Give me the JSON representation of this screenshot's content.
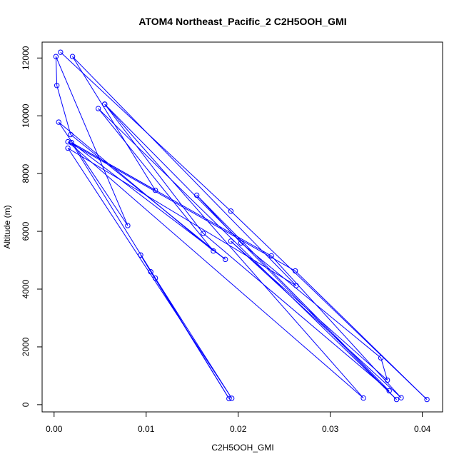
{
  "chart_data": {
    "type": "line",
    "title": "ATOM4 Northeast_Pacific_2 C2H5OOH_GMI",
    "xlabel": "C2H5OOH_GMI",
    "ylabel": "Altitude (m)",
    "xlim": [
      -0.0013,
      0.0422
    ],
    "ylim": [
      -250,
      12550
    ],
    "xticks": [
      0.0,
      0.01,
      0.02,
      0.03,
      0.04
    ],
    "xtick_labels": [
      "0.00",
      "0.01",
      "0.02",
      "0.03",
      "0.04"
    ],
    "yticks": [
      0,
      2000,
      4000,
      6000,
      8000,
      10000,
      12000
    ],
    "ytick_labels": [
      "0",
      "2000",
      "4000",
      "6000",
      "8000",
      "10000",
      "12000"
    ],
    "grid": false,
    "markers": "open-circle",
    "color": "#0000ff",
    "series": [
      {
        "points": [
          {
            "x": 0.0007,
            "y": 12200
          },
          {
            "x": 0.0192,
            "y": 6700
          },
          {
            "x": 0.0405,
            "y": 180
          },
          {
            "x": 0.0262,
            "y": 4630
          },
          {
            "x": 0.0015,
            "y": 9100
          },
          {
            "x": 0.0336,
            "y": 230
          },
          {
            "x": 0.0055,
            "y": 10400
          },
          {
            "x": 0.0372,
            "y": 180
          },
          {
            "x": 0.0048,
            "y": 10250
          },
          {
            "x": 0.0173,
            "y": 5320
          },
          {
            "x": 0.0005,
            "y": 9780
          },
          {
            "x": 0.008,
            "y": 6200
          },
          {
            "x": 0.0002,
            "y": 12050
          },
          {
            "x": 0.0003,
            "y": 11050
          },
          {
            "x": 0.0018,
            "y": 9350
          },
          {
            "x": 0.0186,
            "y": 5030
          },
          {
            "x": 0.0019,
            "y": 9070
          },
          {
            "x": 0.011,
            "y": 7420
          },
          {
            "x": 0.002,
            "y": 12050
          },
          {
            "x": 0.0263,
            "y": 4120
          },
          {
            "x": 0.0015,
            "y": 8880
          },
          {
            "x": 0.0193,
            "y": 220
          },
          {
            "x": 0.0094,
            "y": 5180
          },
          {
            "x": 0.0105,
            "y": 4600
          },
          {
            "x": 0.019,
            "y": 210
          },
          {
            "x": 0.011,
            "y": 4380
          },
          {
            "x": 0.0019,
            "y": 9070
          },
          {
            "x": 0.0236,
            "y": 5150
          },
          {
            "x": 0.0377,
            "y": 240
          },
          {
            "x": 0.0192,
            "y": 5660
          },
          {
            "x": 0.0362,
            "y": 850
          },
          {
            "x": 0.0355,
            "y": 1620
          },
          {
            "x": 0.0203,
            "y": 5600
          },
          {
            "x": 0.0155,
            "y": 7250
          },
          {
            "x": 0.0364,
            "y": 480
          },
          {
            "x": 0.0162,
            "y": 5930
          },
          {
            "x": 0.0055,
            "y": 10400
          }
        ]
      }
    ]
  }
}
